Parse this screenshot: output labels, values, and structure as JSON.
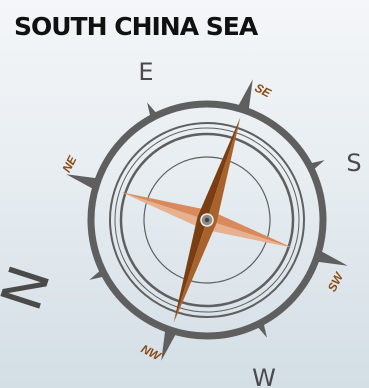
{
  "title": "SOUTH CHINA SEA",
  "compass": {
    "labels": {
      "e": "E",
      "s": "S",
      "w": "W",
      "n": "N",
      "se": "SE",
      "sw": "SW",
      "nw": "NW",
      "ne": "NE"
    },
    "colors": {
      "ring": "#5f5f5f",
      "minor_label": "#8a4a14",
      "needle_dark": "#7a3e12",
      "needle_light": "#d98a5c"
    }
  }
}
